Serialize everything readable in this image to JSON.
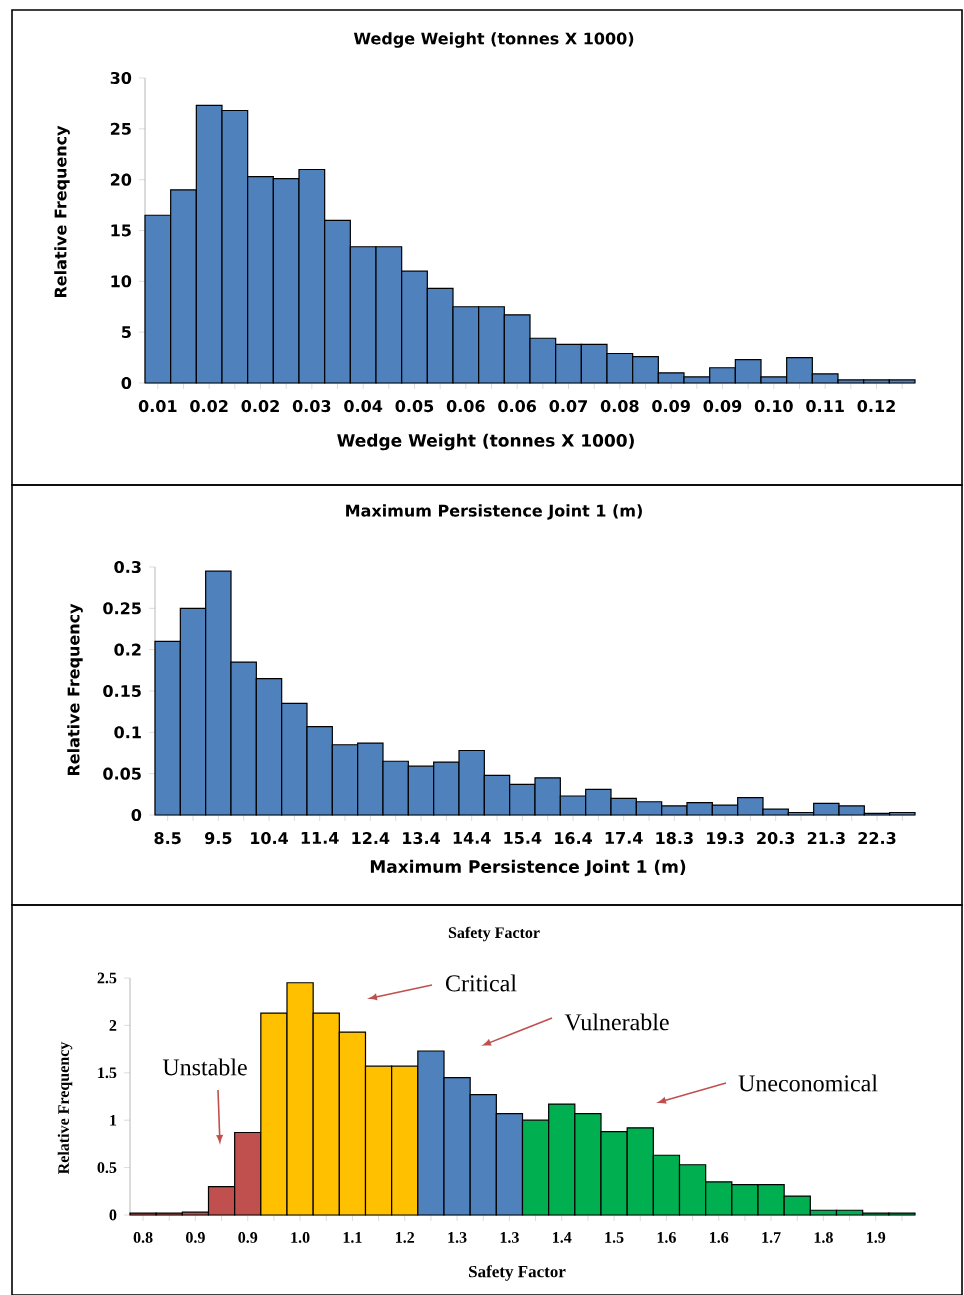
{
  "chart_data": [
    {
      "type": "bar",
      "title": "Wedge Weight (tonnes X 1000)",
      "xlabel": "Wedge Weight (tonnes X 1000)",
      "ylabel": "Relative Frequency",
      "color": "#4f81bd",
      "categories": [
        "0.01",
        null,
        "0.02",
        null,
        "0.02",
        null,
        "0.03",
        null,
        "0.04",
        null,
        "0.05",
        null,
        "0.06",
        null,
        "0.06",
        null,
        "0.07",
        null,
        "0.08",
        null,
        "0.09",
        null,
        "0.09",
        null,
        "0.10",
        null,
        "0.11",
        null,
        "0.12",
        null
      ],
      "values": [
        16.5,
        19,
        27.3,
        26.8,
        20.3,
        20.1,
        21,
        16,
        13.4,
        13.4,
        11,
        9.3,
        7.5,
        7.5,
        6.7,
        4.4,
        3.8,
        3.8,
        2.9,
        2.6,
        1,
        0.6,
        1.5,
        2.3,
        0.6,
        2.5,
        0.9,
        0.3,
        0.3,
        0.3
      ],
      "ylim": [
        0,
        30
      ],
      "yticks": [
        0,
        5,
        10,
        15,
        20,
        25,
        30
      ]
    },
    {
      "type": "bar",
      "title": "Maximum Persistence Joint 1 (m)",
      "xlabel": "Maximum Persistence Joint 1 (m)",
      "ylabel": "Relative Frequency",
      "color": "#4f81bd",
      "categories": [
        "8.5",
        null,
        "9.5",
        null,
        "10.4",
        null,
        "11.4",
        null,
        "12.4",
        null,
        "13.4",
        null,
        "14.4",
        null,
        "15.4",
        null,
        "16.4",
        null,
        "17.4",
        null,
        "18.3",
        null,
        "19.3",
        null,
        "20.3",
        null,
        "21.3",
        null,
        "22.3",
        null
      ],
      "values": [
        0.21,
        0.25,
        0.295,
        0.185,
        0.165,
        0.135,
        0.107,
        0.085,
        0.087,
        0.065,
        0.059,
        0.064,
        0.078,
        0.048,
        0.037,
        0.045,
        0.023,
        0.031,
        0.02,
        0.016,
        0.011,
        0.015,
        0.012,
        0.021,
        0.007,
        0.003,
        0.014,
        0.011,
        0.002,
        0.003
      ],
      "ylim": [
        0,
        0.3
      ],
      "yticks": [
        0,
        0.05,
        0.1,
        0.15,
        0.2,
        0.25,
        0.3
      ]
    },
    {
      "type": "bar",
      "title": "Safety Factor",
      "xlabel": "Safety Factor",
      "ylabel": "Relative Frequency",
      "categories": [
        "0.8",
        null,
        "0.9",
        null,
        "0.9",
        null,
        "1.0",
        null,
        "1.1",
        null,
        "1.2",
        null,
        "1.3",
        null,
        "1.3",
        null,
        "1.4",
        null,
        "1.5",
        null,
        "1.6",
        null,
        "1.6",
        null,
        "1.7",
        null,
        "1.8",
        null,
        "1.9",
        null
      ],
      "values": [
        0.02,
        0.02,
        0.03,
        0.3,
        0.87,
        2.13,
        2.45,
        2.13,
        1.93,
        1.57,
        1.57,
        1.73,
        1.45,
        1.27,
        1.07,
        1.0,
        1.17,
        1.07,
        0.88,
        0.92,
        0.63,
        0.53,
        0.35,
        0.32,
        0.32,
        0.2,
        0.05,
        0.05,
        0.02,
        0.02
      ],
      "colors": [
        "#c0504d",
        "#c0504d",
        "#c0504d",
        "#c0504d",
        "#c0504d",
        "#ffc000",
        "#ffc000",
        "#ffc000",
        "#ffc000",
        "#ffc000",
        "#ffc000",
        "#4f81bd",
        "#4f81bd",
        "#4f81bd",
        "#4f81bd",
        "#00b050",
        "#00b050",
        "#00b050",
        "#00b050",
        "#00b050",
        "#00b050",
        "#00b050",
        "#00b050",
        "#00b050",
        "#00b050",
        "#00b050",
        "#00b050",
        "#00b050",
        "#00b050",
        "#00b050"
      ],
      "ylim": [
        0,
        2.5
      ],
      "yticks": [
        0,
        0.5,
        1,
        1.5,
        2,
        2.5
      ],
      "annotations": [
        "Critical",
        "Vulnerable",
        "Unstable",
        "Uneconomical"
      ]
    }
  ]
}
